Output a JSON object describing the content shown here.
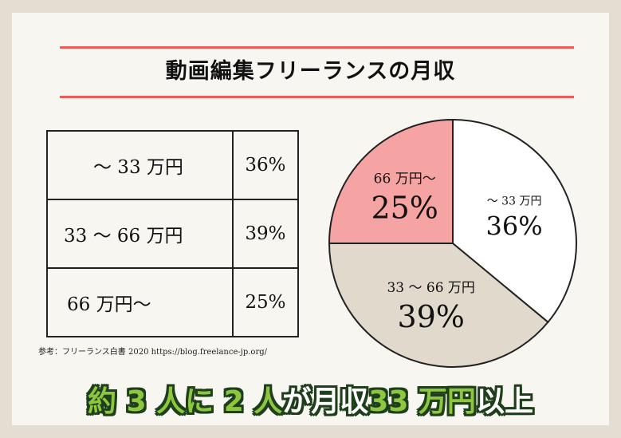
{
  "title": "動画編集フリーランスの月収",
  "table": {
    "rows": [
      {
        "label": "～ 33 万円",
        "percent": "36%"
      },
      {
        "label": "33 ～ 66 万円",
        "percent": "39%"
      },
      {
        "label": "66 万円～",
        "percent": "25%"
      }
    ]
  },
  "source": "参考：フリーランス白書 2020 https://blog.freelance-jp.org/",
  "chart_data": {
    "type": "pie",
    "slices": [
      {
        "label": "～ 33 万円",
        "value": 36,
        "value_label": "36%",
        "color": "#ffffff"
      },
      {
        "label": "33 ～ 66 万円",
        "value": 39,
        "value_label": "39%",
        "color": "#e0d9cc"
      },
      {
        "label": "66 万円～",
        "value": 25,
        "value_label": "25%",
        "color": "#f6a3a3"
      }
    ],
    "start": "12 o'clock",
    "direction": "clockwise",
    "stroke_color": "#222222"
  },
  "headline": {
    "part1": "約 3 人に 2 人",
    "part2": "が月収",
    "part3": "33 万円",
    "part4": "以上"
  }
}
